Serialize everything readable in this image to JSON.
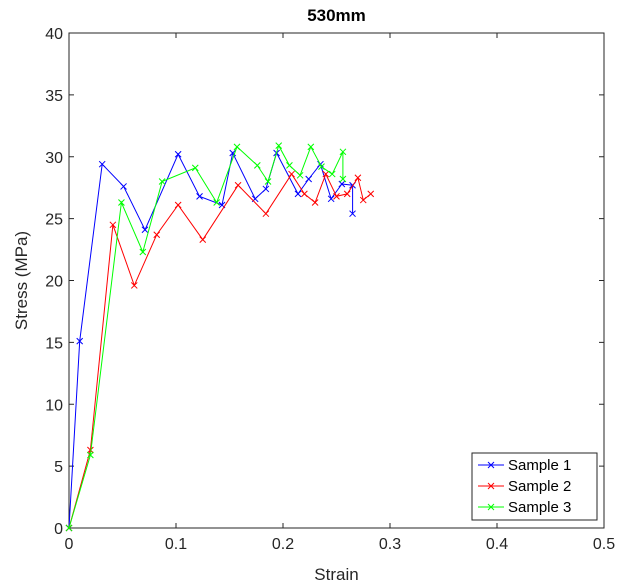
{
  "chart_data": {
    "type": "line",
    "title": "530mm",
    "xlabel": "Strain",
    "ylabel": "Stress (MPa)",
    "xlim": [
      0,
      0.5
    ],
    "ylim": [
      0,
      40
    ],
    "xticks": [
      0,
      0.1,
      0.2,
      0.3,
      0.4,
      0.5
    ],
    "xtick_labels": [
      "0",
      "0.1",
      "0.2",
      "0.3",
      "0.4",
      "0.5"
    ],
    "yticks": [
      0,
      5,
      10,
      15,
      20,
      25,
      30,
      35,
      40
    ],
    "ytick_labels": [
      "0",
      "5",
      "10",
      "15",
      "20",
      "25",
      "30",
      "35",
      "40"
    ],
    "grid": false,
    "marker": "x",
    "legend_position": "bottom-right",
    "series": [
      {
        "name": "Sample 1",
        "color": "#0000ff",
        "x": [
          0,
          0.01,
          0.031,
          0.051,
          0.071,
          0.102,
          0.122,
          0.143,
          0.153,
          0.174,
          0.184,
          0.194,
          0.214,
          0.224,
          0.235,
          0.245,
          0.255,
          0.265,
          0.265
        ],
        "y": [
          0,
          15.1,
          29.4,
          27.6,
          24.1,
          30.2,
          26.8,
          26.1,
          30.3,
          26.6,
          27.4,
          30.3,
          27.0,
          28.2,
          29.4,
          26.6,
          27.8,
          27.7,
          25.4
        ]
      },
      {
        "name": "Sample 2",
        "color": "#ff0000",
        "x": [
          0,
          0.02,
          0.041,
          0.061,
          0.082,
          0.102,
          0.125,
          0.158,
          0.184,
          0.208,
          0.22,
          0.23,
          0.24,
          0.25,
          0.26,
          0.27,
          0.275,
          0.282
        ],
        "y": [
          0,
          6.3,
          24.5,
          19.6,
          23.7,
          26.1,
          23.3,
          27.7,
          25.4,
          28.6,
          27.0,
          26.3,
          28.6,
          26.8,
          27.0,
          28.3,
          26.5,
          27.0
        ]
      },
      {
        "name": "Sample 3",
        "color": "#00ff00",
        "x": [
          0,
          0.02,
          0.049,
          0.069,
          0.087,
          0.118,
          0.138,
          0.157,
          0.176,
          0.186,
          0.196,
          0.206,
          0.216,
          0.226,
          0.236,
          0.246,
          0.256,
          0.256
        ],
        "y": [
          0,
          5.9,
          26.3,
          22.3,
          28.0,
          29.1,
          26.3,
          30.8,
          29.3,
          28.0,
          30.9,
          29.3,
          28.5,
          30.8,
          29.2,
          28.6,
          30.4,
          28.2
        ]
      }
    ]
  }
}
